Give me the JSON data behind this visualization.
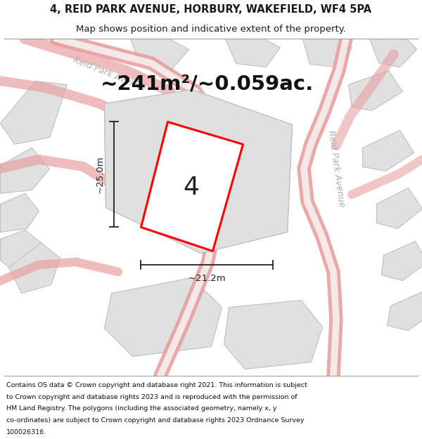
{
  "title_line1": "4, REID PARK AVENUE, HORBURY, WAKEFIELD, WF4 5PA",
  "title_line2": "Map shows position and indicative extent of the property.",
  "area_text": "~241m²/~0.059ac.",
  "property_number": "4",
  "dim_vertical": "~25.0m",
  "dim_horizontal": "~21.2m",
  "footer_lines": [
    "Contains OS data © Crown copyright and database right 2021. This information is subject",
    "to Crown copyright and database rights 2023 and is reproduced with the permission of",
    "HM Land Registry. The polygons (including the associated geometry, namely x, y",
    "co-ordinates) are subject to Crown copyright and database rights 2023 Ordnance Survey",
    "100026316."
  ],
  "map_bg": "#f0efee",
  "plot_fill": "#e0e0e0",
  "plot_stroke": "#c0c0c0",
  "highlight_fill": "#ffffff",
  "highlight_stroke": "#ff0000",
  "street_label_color": "#b0b0b0",
  "dim_color": "#222222",
  "pink_road_color": "#e8a0a0",
  "white_color": "#ffffff",
  "title_color": "#1a1a1a",
  "footer_color": "#111111",
  "sep_line_color": "#999999",
  "road_center_color": "#f8f8f8"
}
